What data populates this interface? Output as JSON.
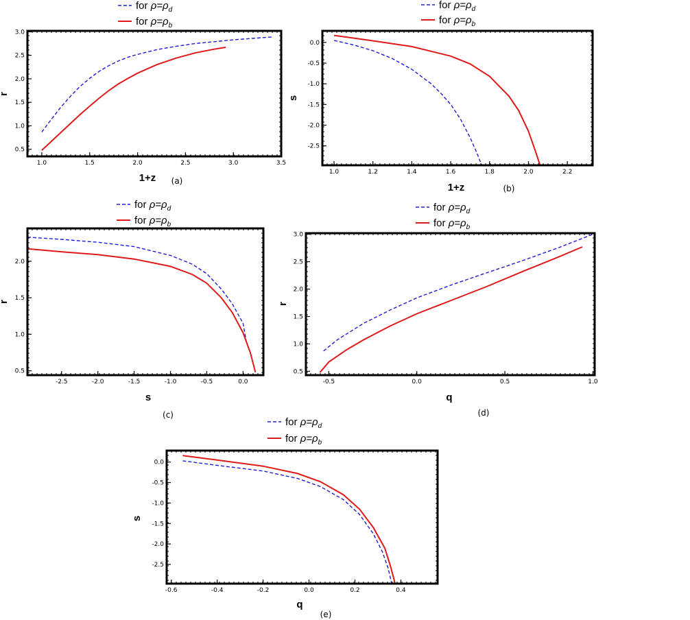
{
  "chart_data": [
    {
      "type": "line",
      "caption": "(a)",
      "xlabel": "1+z",
      "ylabel": "r",
      "xlim": [
        0.85,
        3.5
      ],
      "ylim": [
        0.35,
        3.02
      ],
      "xticks": [
        "1.0",
        "1.5",
        "2.0",
        "2.5",
        "3.0",
        "3.5"
      ],
      "yticks": [
        "0.5",
        "1.0",
        "1.5",
        "2.0",
        "2.5",
        "3.0"
      ],
      "legend": [
        {
          "text": "for ",
          "sym": "ρ=ρ",
          "sub": "d"
        },
        {
          "text": "for ",
          "sym": "ρ=ρ",
          "sub": "b"
        }
      ],
      "series": [
        {
          "name": "for ρ=ρd",
          "color": "#1c1cd6",
          "style": "dashed",
          "x": [
            1.0,
            1.1,
            1.2,
            1.3,
            1.4,
            1.5,
            1.6,
            1.7,
            1.8,
            1.9,
            2.0,
            2.2,
            2.4,
            2.6,
            2.8,
            3.0,
            3.2,
            3.4
          ],
          "y": [
            0.87,
            1.14,
            1.4,
            1.63,
            1.84,
            2.01,
            2.16,
            2.28,
            2.38,
            2.46,
            2.52,
            2.62,
            2.69,
            2.75,
            2.79,
            2.83,
            2.86,
            2.89
          ]
        },
        {
          "name": "for ρ=ρb",
          "color": "#e01818",
          "style": "solid",
          "x": [
            1.0,
            1.1,
            1.2,
            1.3,
            1.4,
            1.5,
            1.6,
            1.7,
            1.8,
            1.9,
            2.0,
            2.2,
            2.4,
            2.6,
            2.8,
            2.92
          ],
          "y": [
            0.48,
            0.67,
            0.86,
            1.05,
            1.24,
            1.42,
            1.59,
            1.75,
            1.89,
            2.01,
            2.12,
            2.3,
            2.44,
            2.55,
            2.63,
            2.67
          ]
        }
      ]
    },
    {
      "type": "line",
      "caption": "(b)",
      "xlabel": "1+z",
      "ylabel": "s",
      "xlim": [
        0.94,
        2.33
      ],
      "ylim": [
        -2.97,
        0.28
      ],
      "xticks": [
        "1.0",
        "1.2",
        "1.4",
        "1.6",
        "1.8",
        "2.0",
        "2.2"
      ],
      "yticks": [
        "0.0",
        "-0.5",
        "-1.0",
        "-1.5",
        "-2.0",
        "-2.5"
      ],
      "legend": [
        {
          "text": "for ",
          "sym": "ρ=ρ",
          "sub": "d"
        },
        {
          "text": "for ",
          "sym": "ρ=ρ",
          "sub": "b"
        }
      ],
      "series": [
        {
          "name": "for ρ=ρd",
          "color": "#1c1cd6",
          "style": "dashed",
          "x": [
            1.0,
            1.1,
            1.2,
            1.3,
            1.4,
            1.5,
            1.55,
            1.6,
            1.65,
            1.7,
            1.73,
            1.76
          ],
          "y": [
            0.05,
            -0.06,
            -0.2,
            -0.39,
            -0.65,
            -1.0,
            -1.23,
            -1.5,
            -1.85,
            -2.3,
            -2.62,
            -2.97
          ]
        },
        {
          "name": "for ρ=ρb",
          "color": "#e01818",
          "style": "solid",
          "x": [
            1.0,
            1.2,
            1.4,
            1.6,
            1.7,
            1.8,
            1.9,
            1.95,
            2.0,
            2.03,
            2.06
          ],
          "y": [
            0.17,
            0.04,
            -0.1,
            -0.33,
            -0.52,
            -0.82,
            -1.3,
            -1.65,
            -2.15,
            -2.55,
            -2.97
          ]
        }
      ]
    },
    {
      "type": "line",
      "caption": "(c)",
      "xlabel": "s",
      "ylabel": "r",
      "xlim": [
        -2.97,
        0.28
      ],
      "ylim": [
        0.44,
        2.45
      ],
      "xticks": [
        "-2.5",
        "-2.0",
        "-1.5",
        "-1.0",
        "-0.5",
        "0.0"
      ],
      "yticks": [
        "0.5",
        "1.0",
        "1.5",
        "2.0"
      ],
      "legend": [
        {
          "text": "for ",
          "sym": "ρ=ρ",
          "sub": "d"
        },
        {
          "text": "for ",
          "sym": "ρ=ρ",
          "sub": "b"
        }
      ],
      "series": [
        {
          "name": "for ρ=ρd",
          "color": "#1c1cd6",
          "style": "dashed",
          "x": [
            -2.97,
            -2.5,
            -2.0,
            -1.5,
            -1.0,
            -0.7,
            -0.5,
            -0.3,
            -0.15,
            0.0,
            0.05
          ],
          "y": [
            2.33,
            2.3,
            2.26,
            2.2,
            2.08,
            1.96,
            1.83,
            1.62,
            1.42,
            1.15,
            0.87
          ]
        },
        {
          "name": "for ρ=ρb",
          "color": "#e01818",
          "style": "solid",
          "x": [
            -2.97,
            -2.5,
            -2.0,
            -1.5,
            -1.0,
            -0.7,
            -0.5,
            -0.3,
            -0.15,
            0.0,
            0.1,
            0.17
          ],
          "y": [
            2.17,
            2.13,
            2.09,
            2.03,
            1.93,
            1.82,
            1.7,
            1.5,
            1.3,
            1.02,
            0.75,
            0.48
          ]
        }
      ]
    },
    {
      "type": "line",
      "caption": "(d)",
      "xlabel": "q",
      "ylabel": "r",
      "xlim": [
        -0.63,
        1.01
      ],
      "ylim": [
        0.43,
        3.02
      ],
      "xticks": [
        "-0.5",
        "0.0",
        "0.5",
        "1.0"
      ],
      "yticks": [
        "0.5",
        "1.0",
        "1.5",
        "2.0",
        "2.5",
        "3.0"
      ],
      "legend": [
        {
          "text": "for ",
          "sym": "ρ=ρ",
          "sub": "d"
        },
        {
          "text": "for ",
          "sym": "ρ=ρ",
          "sub": "b"
        }
      ],
      "series": [
        {
          "name": "for ρ=ρd",
          "color": "#1c1cd6",
          "style": "dashed",
          "x": [
            -0.53,
            -0.45,
            -0.3,
            -0.15,
            0.0,
            0.2,
            0.4,
            0.6,
            0.8,
            1.0
          ],
          "y": [
            0.87,
            1.08,
            1.38,
            1.62,
            1.84,
            2.08,
            2.3,
            2.52,
            2.75,
            3.0
          ]
        },
        {
          "name": "for ρ=ρb",
          "color": "#e01818",
          "style": "solid",
          "x": [
            -0.55,
            -0.5,
            -0.4,
            -0.3,
            -0.15,
            0.0,
            0.2,
            0.4,
            0.6,
            0.8,
            0.94
          ],
          "y": [
            0.48,
            0.67,
            0.89,
            1.08,
            1.33,
            1.55,
            1.8,
            2.05,
            2.32,
            2.58,
            2.77
          ]
        }
      ]
    },
    {
      "type": "line",
      "caption": "(e)",
      "xlabel": "q",
      "ylabel": "s",
      "xlim": [
        -0.62,
        0.56
      ],
      "ylim": [
        -2.97,
        0.28
      ],
      "xticks": [
        "-0.6",
        "-0.4",
        "-0.2",
        "0.0",
        "0.2",
        "0.4"
      ],
      "yticks": [
        "0.0",
        "-0.5",
        "-1.0",
        "-1.5",
        "-2.0",
        "-2.5"
      ],
      "legend": [
        {
          "text": "for ",
          "sym": "ρ=ρ",
          "sub": "d"
        },
        {
          "text": "for ",
          "sym": "ρ=ρ",
          "sub": "b"
        }
      ],
      "series": [
        {
          "name": "for ρ=ρd",
          "color": "#1c1cd6",
          "style": "dashed",
          "x": [
            -0.55,
            -0.4,
            -0.2,
            -0.05,
            0.05,
            0.15,
            0.22,
            0.28,
            0.32,
            0.345,
            0.36
          ],
          "y": [
            0.03,
            -0.08,
            -0.22,
            -0.4,
            -0.6,
            -0.92,
            -1.28,
            -1.75,
            -2.2,
            -2.6,
            -2.97
          ]
        },
        {
          "name": "for ρ=ρb",
          "color": "#e01818",
          "style": "solid",
          "x": [
            -0.55,
            -0.4,
            -0.2,
            -0.05,
            0.05,
            0.15,
            0.22,
            0.28,
            0.33,
            0.355,
            0.375
          ],
          "y": [
            0.16,
            0.05,
            -0.1,
            -0.28,
            -0.48,
            -0.8,
            -1.15,
            -1.6,
            -2.1,
            -2.55,
            -2.97
          ]
        }
      ]
    }
  ]
}
